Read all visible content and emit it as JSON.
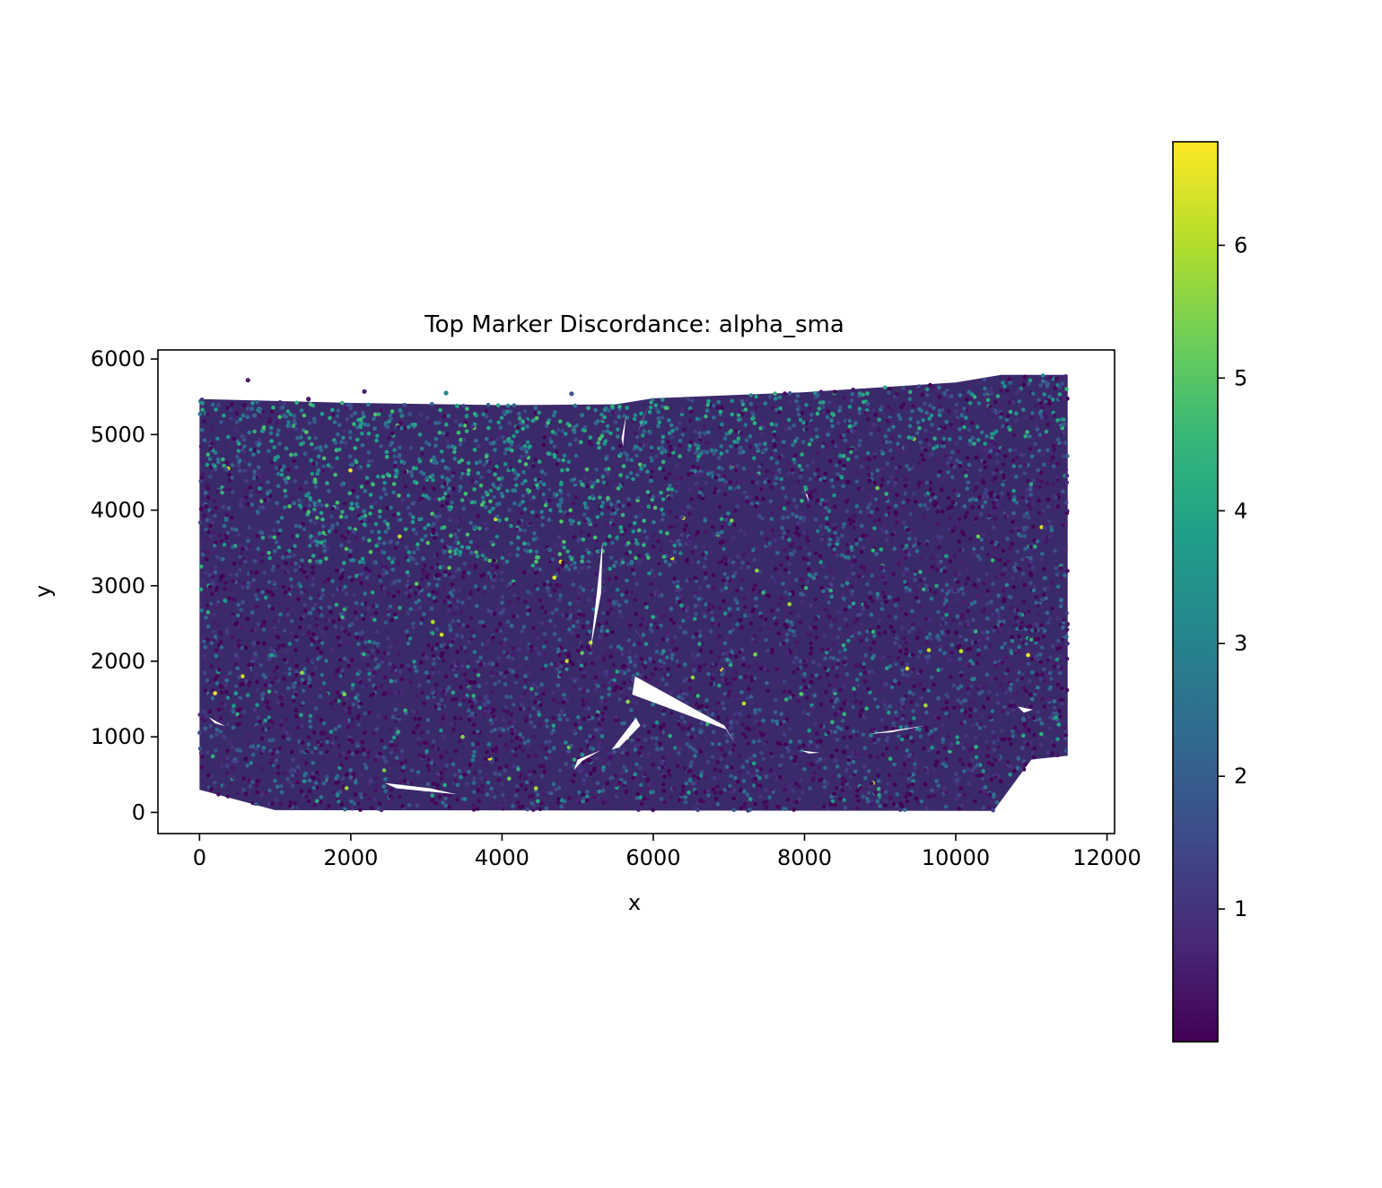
{
  "chart_data": {
    "type": "scatter",
    "title": "Top Marker Discordance: alpha_sma",
    "xlabel": "x",
    "ylabel": "y",
    "xlim": [
      -550,
      12100
    ],
    "ylim": [
      -280,
      6120
    ],
    "xticks": [
      0,
      2000,
      4000,
      6000,
      8000,
      10000,
      12000
    ],
    "xtick_labels": [
      "0",
      "2000",
      "4000",
      "6000",
      "8000",
      "10000",
      "12000"
    ],
    "yticks": [
      0,
      1000,
      2000,
      3000,
      4000,
      5000,
      6000
    ],
    "ytick_labels": [
      "0",
      "1000",
      "2000",
      "3000",
      "4000",
      "5000",
      "6000"
    ],
    "grid": false,
    "colormap": "viridis",
    "colorbar": {
      "range": [
        0.0,
        6.78
      ],
      "ticks": [
        1,
        2,
        3,
        4,
        5,
        6
      ],
      "tick_labels": [
        "1",
        "2",
        "3",
        "4",
        "5",
        "6"
      ]
    },
    "tissue_region": {
      "x_range": [
        0,
        11480
      ],
      "top_edge": [
        [
          0,
          5470
        ],
        [
          2000,
          5420
        ],
        [
          4000,
          5390
        ],
        [
          5500,
          5400
        ],
        [
          6000,
          5480
        ],
        [
          8000,
          5560
        ],
        [
          10000,
          5690
        ],
        [
          10600,
          5790
        ],
        [
          11480,
          5790
        ]
      ],
      "bottom_edge": [
        [
          0,
          300
        ],
        [
          1000,
          30
        ],
        [
          10500,
          20
        ],
        [
          11000,
          700
        ],
        [
          11480,
          750
        ]
      ]
    },
    "value_pattern": "mostly 0-2 with elevated 3-6 values concentrated in the upper-left and top band (x 1000-6000, y 3500-5400)",
    "outlier_points": [
      {
        "x": 640,
        "y": 5720,
        "value": 0.5
      },
      {
        "x": 1440,
        "y": 5470,
        "value": 0.4
      },
      {
        "x": 2180,
        "y": 5570,
        "value": 0.6
      },
      {
        "x": 3260,
        "y": 5550,
        "value": 3.2
      },
      {
        "x": 4920,
        "y": 5540,
        "value": 1.8
      }
    ],
    "voids": [
      {
        "type": "sliver",
        "points": [
          [
            5170,
            2150
          ],
          [
            5330,
            3600
          ],
          [
            5310,
            2900
          ]
        ]
      },
      {
        "type": "sliver",
        "points": [
          [
            5760,
            1800
          ],
          [
            6940,
            1150
          ],
          [
            7090,
            900
          ],
          [
            6960,
            1100
          ],
          [
            5720,
            1560
          ]
        ]
      },
      {
        "type": "sliver",
        "points": [
          [
            2450,
            390
          ],
          [
            2600,
            320
          ],
          [
            3400,
            240
          ],
          [
            3050,
            320
          ]
        ]
      },
      {
        "type": "sliver",
        "points": [
          [
            5450,
            830
          ],
          [
            5770,
            1250
          ],
          [
            5830,
            1150
          ],
          [
            5550,
            860
          ]
        ]
      },
      {
        "type": "sliver",
        "points": [
          [
            5000,
            700
          ],
          [
            5300,
            820
          ],
          [
            5060,
            680
          ],
          [
            4950,
            560
          ]
        ]
      },
      {
        "type": "sliver",
        "points": [
          [
            5730,
            2460
          ],
          [
            5920,
            2200
          ],
          [
            5790,
            2380
          ]
        ]
      },
      {
        "type": "sliver",
        "points": [
          [
            5580,
            4950
          ],
          [
            5640,
            5250
          ],
          [
            5600,
            4850
          ]
        ]
      },
      {
        "type": "sliver",
        "points": [
          [
            5800,
            5030
          ],
          [
            5930,
            5370
          ],
          [
            5840,
            5150
          ]
        ]
      },
      {
        "type": "sliver",
        "points": [
          [
            120,
            1260
          ],
          [
            340,
            1140
          ],
          [
            200,
            1180
          ]
        ]
      },
      {
        "type": "sliver",
        "points": [
          [
            8860,
            1040
          ],
          [
            9600,
            1150
          ],
          [
            9150,
            1060
          ]
        ]
      },
      {
        "type": "sliver",
        "points": [
          [
            10820,
            1400
          ],
          [
            11020,
            1360
          ],
          [
            10900,
            1320
          ]
        ]
      },
      {
        "type": "sliver",
        "points": [
          [
            7950,
            820
          ],
          [
            8200,
            790
          ],
          [
            8060,
            780
          ]
        ]
      },
      {
        "type": "sliver",
        "points": [
          [
            8010,
            4230
          ],
          [
            8060,
            4100
          ],
          [
            8040,
            4200
          ]
        ]
      }
    ]
  }
}
